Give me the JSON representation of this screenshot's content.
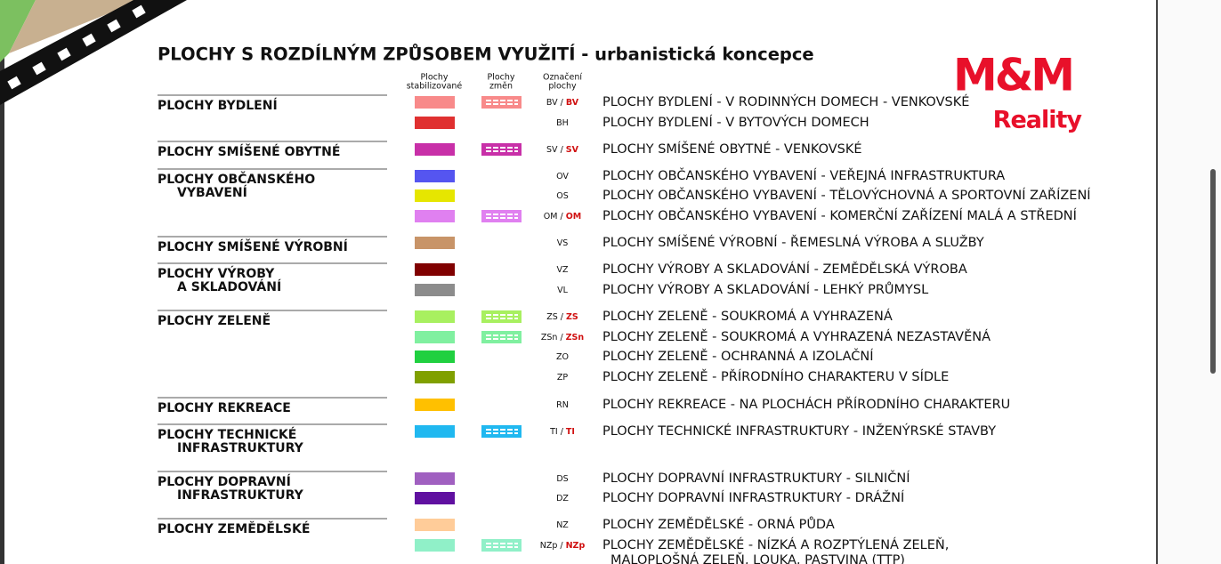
{
  "header": {
    "title": "PLOCHY S ROZDÍLNÝM ZPŮSOBEM VYUŽITÍ - urbanistická koncepce",
    "columns": [
      [
        "Plochy",
        "stabilizované"
      ],
      [
        "Plochy",
        "změn"
      ],
      [
        "Označení",
        "plochy"
      ]
    ]
  },
  "logo": {
    "brand": "M&M",
    "sub": "Reality",
    "color": "#e8102a"
  },
  "groups": [
    {
      "label": [
        "PLOCHY BYDLENÍ"
      ],
      "rows": [
        {
          "code": "BV /",
          "code_change": "BV",
          "color": "#f88a8a",
          "change": true,
          "description": [
            "PLOCHY BYDLENÍ - V RODINNÝCH DOMECH - VENKOVSKÉ"
          ]
        },
        {
          "code": "BH",
          "color": "#e03030",
          "change": false,
          "description": [
            "PLOCHY BYDLENÍ - V BYTOVÝCH DOMECH"
          ]
        }
      ]
    },
    {
      "label": [
        "PLOCHY SMÍŠENÉ OBYTNÉ"
      ],
      "rows": [
        {
          "code": "SV /",
          "code_change": "SV",
          "color": "#c830a8",
          "change": true,
          "description": [
            "PLOCHY SMÍŠENÉ OBYTNÉ - VENKOVSKÉ"
          ]
        }
      ]
    },
    {
      "label": [
        "PLOCHY OBČANSKÉHO",
        "VYBAVENÍ"
      ],
      "rows": [
        {
          "code": "OV",
          "color": "#5555f0",
          "change": false,
          "description": [
            "PLOCHY OBČANSKÉHO VYBAVENÍ - VEŘEJNÁ INFRASTRUKTURA"
          ]
        },
        {
          "code": "OS",
          "color": "#e6e600",
          "change": false,
          "description": [
            "PLOCHY OBČANSKÉHO VYBAVENÍ - TĚLOVÝCHOVNÁ A SPORTOVNÍ ZAŘÍZENÍ"
          ]
        },
        {
          "code": "OM /",
          "code_change": "OM",
          "color": "#e080f0",
          "change": true,
          "description": [
            "PLOCHY OBČANSKÉHO VYBAVENÍ - KOMERČNÍ ZAŘÍZENÍ MALÁ A STŘEDNÍ"
          ]
        }
      ]
    },
    {
      "label": [
        "PLOCHY SMÍŠENÉ VÝROBNÍ"
      ],
      "rows": [
        {
          "code": "VS",
          "color": "#c89468",
          "change": false,
          "description": [
            "PLOCHY SMÍŠENÉ VÝROBNÍ - ŘEMESLNÁ VÝROBA A SLUŽBY"
          ]
        }
      ]
    },
    {
      "label": [
        "PLOCHY VÝROBY",
        "A SKLADOVÁNÍ"
      ],
      "rows": [
        {
          "code": "VZ",
          "color": "#800000",
          "change": false,
          "description": [
            "PLOCHY VÝROBY A SKLADOVÁNÍ - ZEMĚDĚLSKÁ VÝROBA"
          ]
        },
        {
          "code": "VL",
          "color": "#8c8c8c",
          "change": false,
          "description": [
            "PLOCHY VÝROBY A SKLADOVÁNÍ - LEHKÝ PRŮMYSL"
          ]
        }
      ]
    },
    {
      "label": [
        "PLOCHY ZELENĚ"
      ],
      "rows": [
        {
          "code": "ZS /",
          "code_change": "ZS",
          "color": "#a8f060",
          "change": true,
          "description": [
            "PLOCHY ZELENĚ - SOUKROMÁ A VYHRAZENÁ"
          ]
        },
        {
          "code": "ZSn /",
          "code_change": "ZSn",
          "color": "#80f0a0",
          "change": true,
          "description": [
            "PLOCHY ZELENĚ - SOUKROMÁ A VYHRAZENÁ NEZASTAVĚNÁ"
          ]
        },
        {
          "code": "ZO",
          "color": "#20d040",
          "change": false,
          "description": [
            "PLOCHY ZELENĚ - OCHRANNÁ A IZOLAČNÍ"
          ]
        },
        {
          "code": "ZP",
          "color": "#80a000",
          "change": false,
          "description": [
            "PLOCHY ZELENĚ - PŘÍRODNÍHO CHARAKTERU V SÍDLE"
          ]
        }
      ]
    },
    {
      "label": [
        "PLOCHY REKREACE"
      ],
      "rows": [
        {
          "code": "RN",
          "color": "#ffc000",
          "change": false,
          "description": [
            "PLOCHY REKREACE - NA PLOCHÁCH PŘÍRODNÍHO CHARAKTERU"
          ]
        }
      ]
    },
    {
      "label": [
        "PLOCHY TECHNICKÉ",
        "INFRASTRUKTURY"
      ],
      "rows": [
        {
          "code": "TI /",
          "code_change": "TI",
          "color": "#20b8f0",
          "change": true,
          "description": [
            "PLOCHY TECHNICKÉ INFRASTRUKTURY - INŽENÝRSKÉ STAVBY"
          ]
        }
      ]
    },
    {
      "label": [
        "PLOCHY DOPRAVNÍ",
        "INFRASTRUKTURY"
      ],
      "rows": [
        {
          "code": "DS",
          "color": "#a060c0",
          "change": false,
          "description": [
            "PLOCHY DOPRAVNÍ INFRASTRUKTURY - SILNIČNÍ"
          ]
        },
        {
          "code": "DZ",
          "color": "#6010a0",
          "change": false,
          "description": [
            "PLOCHY DOPRAVNÍ INFRASTRUKTURY - DRÁŽNÍ"
          ]
        }
      ]
    },
    {
      "label": [
        "PLOCHY ZEMĚDĚLSKÉ"
      ],
      "rows": [
        {
          "code": "NZ",
          "color": "#ffcc99",
          "change": false,
          "description": [
            "PLOCHY ZEMĚDĚLSKÉ - ORNÁ PŮDA"
          ]
        },
        {
          "code": "NZp /",
          "code_change": "NZp",
          "color": "#90f0c8",
          "change": true,
          "description": [
            "PLOCHY ZEMĚDĚLSKÉ - NÍZKÁ A ROZPTÝLENÁ ZELEŇ,",
            "MALOPLOŠNÁ ZELEŇ, LOUKA, PASTVINA (TTP)"
          ]
        }
      ]
    }
  ]
}
